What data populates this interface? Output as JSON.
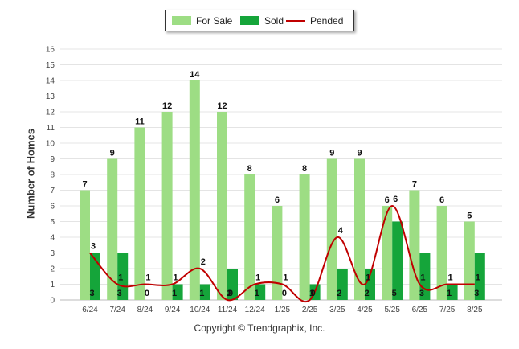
{
  "chart_data": {
    "type": "bar",
    "ylabel": "Number of Homes",
    "xlabel": "",
    "ylim": [
      0,
      16
    ],
    "yticks": [
      0,
      1,
      2,
      3,
      4,
      5,
      6,
      7,
      8,
      9,
      10,
      11,
      12,
      13,
      14,
      15,
      16
    ],
    "grid": true,
    "legend_position": "top-center",
    "categories": [
      "6/24",
      "7/24",
      "8/24",
      "9/24",
      "10/24",
      "11/24",
      "12/24",
      "1/25",
      "2/25",
      "3/25",
      "4/25",
      "5/25",
      "6/25",
      "7/25",
      "8/25"
    ],
    "series": [
      {
        "name": "For Sale",
        "type": "bar",
        "color": "#9ddd84",
        "values": [
          7,
          9,
          11,
          12,
          14,
          12,
          8,
          6,
          8,
          9,
          9,
          6,
          7,
          6,
          5
        ]
      },
      {
        "name": "Sold",
        "type": "bar",
        "color": "#15a53a",
        "values": [
          3,
          3,
          0,
          1,
          1,
          2,
          1,
          0,
          1,
          2,
          2,
          5,
          3,
          1,
          3
        ]
      },
      {
        "name": "Pended",
        "type": "line",
        "color": "#c00000",
        "values": [
          3,
          1,
          1,
          1,
          2,
          0,
          1,
          1,
          0,
          4,
          1,
          6,
          1,
          1,
          1
        ]
      }
    ]
  },
  "footer": {
    "copyright": "Copyright © Trendgraphix, Inc."
  }
}
